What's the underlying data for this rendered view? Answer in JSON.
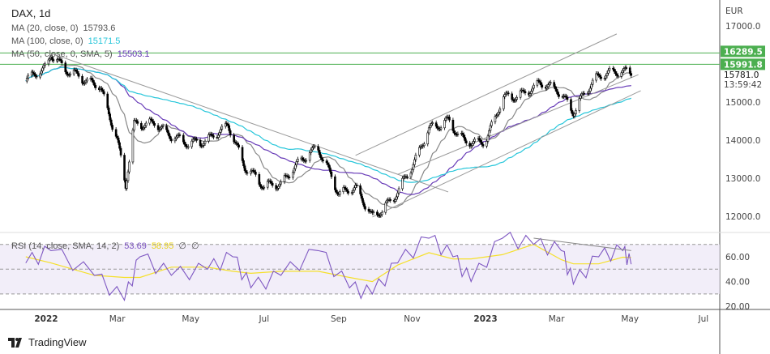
{
  "header": {
    "title": "DAX, 1d",
    "ma20": {
      "label": "MA (20, close, 0)",
      "value": "15793.6"
    },
    "ma100": {
      "label": "MA (100, close, 0)",
      "value": "15171.5"
    },
    "ma50": {
      "label": "MA (50, close, 0, SMA, 5)",
      "value": "15503.1"
    }
  },
  "rsi_legend": {
    "label": "RSI (14, close, SMA, 14, 2)",
    "rsi": "53.69",
    "sma": "58.95",
    "extra1": "∅",
    "extra2": "∅"
  },
  "price_axis": {
    "currency": "EUR",
    "last_price": "15781.0",
    "countdown": "13:59:42",
    "level1": "16289.5",
    "level2": "15991.8"
  },
  "brand": "TradingView",
  "colors": {
    "ma20": "#888888",
    "ma100": "#26c6da",
    "ma50": "#673ab7",
    "rsi": "#7e57c2",
    "rsi_sma": "#f5e02a",
    "level": "#4caf50",
    "up": "#ffffff",
    "down": "#000000"
  },
  "chart_data": [
    {
      "type": "candlestick",
      "title": "DAX, 1d",
      "ylabel": "EUR",
      "ylim": [
        11700,
        17300
      ],
      "yticks": [
        "17000.0",
        "15000.0",
        "14000.0",
        "13000.0",
        "12000.0"
      ],
      "xticks": [
        {
          "label": "2022",
          "date": "2022-01-01"
        },
        {
          "label": "Mar",
          "date": "2022-03-01"
        },
        {
          "label": "May",
          "date": "2022-05-01"
        },
        {
          "label": "Jul",
          "date": "2022-07-01"
        },
        {
          "label": "Sep",
          "date": "2022-09-01"
        },
        {
          "label": "Nov",
          "date": "2022-11-01"
        },
        {
          "label": "2023",
          "date": "2023-01-01"
        },
        {
          "label": "Mar",
          "date": "2023-03-01"
        },
        {
          "label": "May",
          "date": "2023-05-01"
        },
        {
          "label": "Jul",
          "date": "2023-07-01"
        }
      ],
      "closes": [
        [
          "2021-12-15",
          15600
        ],
        [
          "2022-01-01",
          15900
        ],
        [
          "2022-01-05",
          16270
        ],
        [
          "2022-01-15",
          15900
        ],
        [
          "2022-02-01",
          15600
        ],
        [
          "2022-02-15",
          15400
        ],
        [
          "2022-03-01",
          14000
        ],
        [
          "2022-03-08",
          12830
        ],
        [
          "2022-03-15",
          14400
        ],
        [
          "2022-04-01",
          14450
        ],
        [
          "2022-04-15",
          14100
        ],
        [
          "2022-05-01",
          13900
        ],
        [
          "2022-05-15",
          14000
        ],
        [
          "2022-06-01",
          14400
        ],
        [
          "2022-06-15",
          13300
        ],
        [
          "2022-07-01",
          12800
        ],
        [
          "2022-07-15",
          12850
        ],
        [
          "2022-08-01",
          13500
        ],
        [
          "2022-08-15",
          13800
        ],
        [
          "2022-09-01",
          12600
        ],
        [
          "2022-09-15",
          12750
        ],
        [
          "2022-09-29",
          11975
        ],
        [
          "2022-10-15",
          12400
        ],
        [
          "2022-11-01",
          13300
        ],
        [
          "2022-11-15",
          14300
        ],
        [
          "2022-12-01",
          14500
        ],
        [
          "2022-12-15",
          13950
        ],
        [
          "2023-01-01",
          13950
        ],
        [
          "2023-01-15",
          15100
        ],
        [
          "2023-02-01",
          15200
        ],
        [
          "2023-02-15",
          15500
        ],
        [
          "2023-03-01",
          15350
        ],
        [
          "2023-03-15",
          14750
        ],
        [
          "2023-04-01",
          15600
        ],
        [
          "2023-04-15",
          15800
        ],
        [
          "2023-05-02",
          15781
        ]
      ],
      "horizontal_levels": [
        16289.5,
        15991.8
      ],
      "trendlines": [
        [
          [
            "2022-01-05",
            16280
          ],
          [
            "2022-12-01",
            12640
          ]
        ],
        [
          [
            "2022-09-29",
            11980
          ],
          [
            "2023-05-10",
            15300
          ]
        ],
        [
          [
            "2022-09-15",
            13600
          ],
          [
            "2023-04-20",
            16790
          ]
        ],
        [
          [
            "2022-10-20",
            13100
          ],
          [
            "2023-05-08",
            15720
          ]
        ]
      ]
    },
    {
      "type": "line",
      "title": "RSI (14, close, SMA, 14, 2)",
      "ylim": [
        18,
        75
      ],
      "yticks": [
        "60.00",
        "40.00",
        "20.00"
      ],
      "bands": [
        70,
        50,
        30
      ],
      "rsi": [
        [
          "2021-12-15",
          55
        ],
        [
          "2022-01-05",
          65
        ],
        [
          "2022-02-10",
          45
        ],
        [
          "2022-03-07",
          25
        ],
        [
          "2022-03-20",
          60
        ],
        [
          "2022-04-15",
          45
        ],
        [
          "2022-05-15",
          50
        ],
        [
          "2022-06-05",
          60
        ],
        [
          "2022-06-20",
          35
        ],
        [
          "2022-07-15",
          45
        ],
        [
          "2022-08-15",
          65
        ],
        [
          "2022-09-10",
          35
        ],
        [
          "2022-09-29",
          30
        ],
        [
          "2022-10-20",
          55
        ],
        [
          "2022-11-15",
          75
        ],
        [
          "2022-12-05",
          60
        ],
        [
          "2022-12-20",
          40
        ],
        [
          "2023-01-15",
          75
        ],
        [
          "2023-02-10",
          70
        ],
        [
          "2023-03-05",
          65
        ],
        [
          "2023-03-15",
          38
        ],
        [
          "2023-04-05",
          60
        ],
        [
          "2023-04-25",
          65
        ],
        [
          "2023-05-02",
          54
        ]
      ]
    }
  ]
}
